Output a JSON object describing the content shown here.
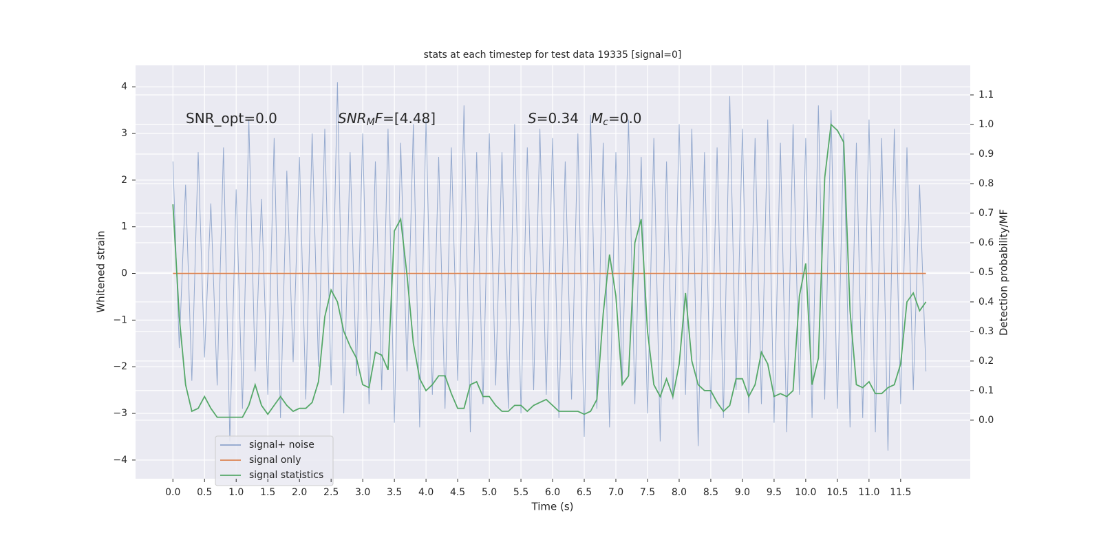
{
  "chart_data": {
    "type": "line",
    "title": "stats at each timestep for test data 19335 [signal=0]",
    "xlabel": "Time (s)",
    "ylabel": "Whitened strain",
    "y2label": "Detection probability/MF",
    "annotations": [
      [
        {
          "text": "SNR_opt=0.0"
        }
      ],
      [
        {
          "text": "SNR",
          "italic": true
        },
        {
          "text": "M",
          "italic": true,
          "sub": true
        },
        {
          "text": "F",
          "italic": true
        },
        {
          "text": "=[4.48]"
        }
      ],
      [
        {
          "text": "S",
          "italic": true
        },
        {
          "text": "=0.34"
        }
      ],
      [
        {
          "text": "M",
          "italic": true
        },
        {
          "text": "c",
          "italic": true,
          "sub": true
        },
        {
          "text": "=0.0"
        }
      ]
    ],
    "grid": true,
    "xlim": [
      -0.59,
      12.6
    ],
    "ylim": [
      -4.4,
      4.46
    ],
    "y2lim": [
      -0.198,
      1.2
    ],
    "xticks": [
      {
        "value": 0,
        "label": "0.0"
      },
      {
        "value": 0.5,
        "label": "0.5"
      },
      {
        "value": 1,
        "label": "1.0"
      },
      {
        "value": 1.5,
        "label": "1.5"
      },
      {
        "value": 2,
        "label": "2.0"
      },
      {
        "value": 2.5,
        "label": "2.5"
      },
      {
        "value": 3,
        "label": "3.0"
      },
      {
        "value": 3.5,
        "label": "3.5"
      },
      {
        "value": 4,
        "label": "4.0"
      },
      {
        "value": 4.5,
        "label": "4.5"
      },
      {
        "value": 5,
        "label": "5.0"
      },
      {
        "value": 5.5,
        "label": "5.5"
      },
      {
        "value": 6,
        "label": "6.0"
      },
      {
        "value": 6.5,
        "label": "6.5"
      },
      {
        "value": 7,
        "label": "7.0"
      },
      {
        "value": 7.5,
        "label": "7.5"
      },
      {
        "value": 8,
        "label": "8.0"
      },
      {
        "value": 8.5,
        "label": "8.5"
      },
      {
        "value": 9,
        "label": "9.0"
      },
      {
        "value": 9.5,
        "label": "9.5"
      },
      {
        "value": 10,
        "label": "10.0"
      },
      {
        "value": 10.5,
        "label": "10.5"
      },
      {
        "value": 11,
        "label": "11.0"
      },
      {
        "value": 11.5,
        "label": "11.5"
      }
    ],
    "yticks": [
      {
        "value": -4,
        "label": "−4"
      },
      {
        "value": -3,
        "label": "−3"
      },
      {
        "value": -2,
        "label": "−2"
      },
      {
        "value": -1,
        "label": "−1"
      },
      0,
      1,
      2,
      3,
      4
    ],
    "y2ticks": [
      {
        "value": 0,
        "label": "0.0"
      },
      {
        "value": 0.1,
        "label": "0.1"
      },
      {
        "value": 0.2,
        "label": "0.2"
      },
      {
        "value": 0.3,
        "label": "0.3"
      },
      {
        "value": 0.4,
        "label": "0.4"
      },
      {
        "value": 0.5,
        "label": "0.5"
      },
      {
        "value": 0.6,
        "label": "0.6"
      },
      {
        "value": 0.7,
        "label": "0.7"
      },
      {
        "value": 0.8,
        "label": "0.8"
      },
      {
        "value": 0.9,
        "label": "0.9"
      },
      {
        "value": 1,
        "label": "1.0"
      },
      {
        "value": 1.1,
        "label": "1.1"
      }
    ],
    "x": [
      0,
      0.1,
      0.2,
      0.3,
      0.4,
      0.5,
      0.6,
      0.7,
      0.8,
      0.9,
      1,
      1.1,
      1.2,
      1.3,
      1.4,
      1.5,
      1.6,
      1.7,
      1.8,
      1.9,
      2,
      2.1,
      2.2,
      2.3,
      2.4,
      2.5,
      2.6,
      2.7,
      2.8,
      2.9,
      3,
      3.1,
      3.2,
      3.3,
      3.4,
      3.5,
      3.6,
      3.7,
      3.8,
      3.9,
      4,
      4.1,
      4.2,
      4.3,
      4.4,
      4.5,
      4.6,
      4.7,
      4.8,
      4.9,
      5,
      5.1,
      5.2,
      5.3,
      5.4,
      5.5,
      5.6,
      5.7,
      5.8,
      5.9,
      6,
      6.1,
      6.2,
      6.3,
      6.4,
      6.5,
      6.6,
      6.7,
      6.8,
      6.9,
      7,
      7.1,
      7.2,
      7.3,
      7.4,
      7.5,
      7.6,
      7.7,
      7.8,
      7.9,
      8,
      8.1,
      8.2,
      8.3,
      8.4,
      8.5,
      8.6,
      8.7,
      8.8,
      8.9,
      9,
      9.1,
      9.2,
      9.3,
      9.4,
      9.5,
      9.6,
      9.7,
      9.8,
      9.9,
      10,
      10.1,
      10.2,
      10.3,
      10.4,
      10.5,
      10.6,
      10.7,
      10.8,
      10.9,
      11,
      11.1,
      11.2,
      11.3,
      11.4,
      11.5,
      11.6,
      11.7,
      11.8,
      11.9
    ],
    "series": [
      {
        "name": "signal+ noise",
        "color": "#4c72b0",
        "values": [
          2.4,
          -1.6,
          1.9,
          -2.3,
          2.6,
          -1.8,
          1.5,
          -2.4,
          2.7,
          -3.6,
          1.8,
          -2.9,
          3.3,
          -2.1,
          1.6,
          -2.6,
          2.9,
          -3.1,
          2.2,
          -1.9,
          2.5,
          -2.7,
          3.0,
          -2.0,
          3.1,
          -2.4,
          4.1,
          -3.0,
          2.6,
          -2.2,
          3.0,
          -2.8,
          2.4,
          -2.5,
          3.1,
          -3.2,
          2.8,
          -2.1,
          3.2,
          -3.3,
          3.3,
          -2.6,
          2.5,
          -2.9,
          2.7,
          -2.3,
          3.6,
          -3.4,
          2.6,
          -2.8,
          3.0,
          -2.4,
          2.6,
          -2.9,
          3.2,
          -3.0,
          2.7,
          -2.5,
          3.1,
          -2.6,
          2.9,
          -3.1,
          2.4,
          -2.7,
          3.0,
          -3.5,
          3.4,
          -2.9,
          2.8,
          -3.3,
          2.6,
          -2.4,
          3.3,
          -2.8,
          2.5,
          -3.0,
          2.9,
          -3.6,
          2.4,
          -2.7,
          3.2,
          -2.6,
          3.1,
          -3.7,
          2.6,
          -2.9,
          2.7,
          -3.1,
          3.8,
          -2.5,
          3.1,
          -3.0,
          2.9,
          -2.8,
          3.3,
          -3.2,
          2.8,
          -3.4,
          3.2,
          -2.6,
          2.9,
          -3.1,
          3.6,
          -2.7,
          3.5,
          -2.9,
          3.0,
          -3.3,
          2.8,
          -3.1,
          3.3,
          -3.4,
          2.9,
          -3.8,
          3.1,
          -2.8,
          2.7,
          -2.5,
          1.9,
          -2.1
        ]
      },
      {
        "name": "signal only",
        "color": "#dd8452",
        "values": [
          0,
          0,
          0,
          0,
          0,
          0,
          0,
          0,
          0,
          0,
          0,
          0,
          0,
          0,
          0,
          0,
          0,
          0,
          0,
          0,
          0,
          0,
          0,
          0,
          0,
          0,
          0,
          0,
          0,
          0,
          0,
          0,
          0,
          0,
          0,
          0,
          0,
          0,
          0,
          0,
          0,
          0,
          0,
          0,
          0,
          0,
          0,
          0,
          0,
          0,
          0,
          0,
          0,
          0,
          0,
          0,
          0,
          0,
          0,
          0,
          0,
          0,
          0,
          0,
          0,
          0,
          0,
          0,
          0,
          0,
          0,
          0,
          0,
          0,
          0,
          0,
          0,
          0,
          0,
          0,
          0,
          0,
          0,
          0,
          0,
          0,
          0,
          0,
          0,
          0,
          0,
          0,
          0,
          0,
          0,
          0,
          0,
          0,
          0,
          0,
          0,
          0,
          0,
          0,
          0,
          0,
          0,
          0,
          0,
          0,
          0,
          0,
          0,
          0,
          0,
          0,
          0,
          0,
          0,
          0
        ]
      },
      {
        "name": "signal statistics",
        "color": "#55a868",
        "axis": "y2",
        "values": [
          0.73,
          0.35,
          0.12,
          0.03,
          0.04,
          0.08,
          0.04,
          0.01,
          0.01,
          0.01,
          0.01,
          0.01,
          0.05,
          0.12,
          0.05,
          0.02,
          0.05,
          0.08,
          0.05,
          0.03,
          0.04,
          0.04,
          0.06,
          0.13,
          0.35,
          0.44,
          0.4,
          0.3,
          0.25,
          0.21,
          0.12,
          0.11,
          0.23,
          0.22,
          0.17,
          0.64,
          0.68,
          0.49,
          0.26,
          0.14,
          0.1,
          0.12,
          0.15,
          0.15,
          0.09,
          0.04,
          0.04,
          0.12,
          0.13,
          0.08,
          0.08,
          0.05,
          0.03,
          0.03,
          0.05,
          0.05,
          0.03,
          0.05,
          0.06,
          0.07,
          0.05,
          0.03,
          0.03,
          0.03,
          0.03,
          0.02,
          0.03,
          0.07,
          0.36,
          0.56,
          0.42,
          0.12,
          0.15,
          0.6,
          0.68,
          0.3,
          0.12,
          0.08,
          0.14,
          0.08,
          0.19,
          0.43,
          0.2,
          0.12,
          0.1,
          0.1,
          0.06,
          0.03,
          0.05,
          0.14,
          0.14,
          0.08,
          0.12,
          0.23,
          0.19,
          0.08,
          0.09,
          0.08,
          0.1,
          0.42,
          0.53,
          0.12,
          0.21,
          0.82,
          1.0,
          0.98,
          0.94,
          0.37,
          0.12,
          0.11,
          0.13,
          0.09,
          0.09,
          0.11,
          0.12,
          0.19,
          0.4,
          0.43,
          0.37,
          0.4
        ]
      }
    ]
  }
}
